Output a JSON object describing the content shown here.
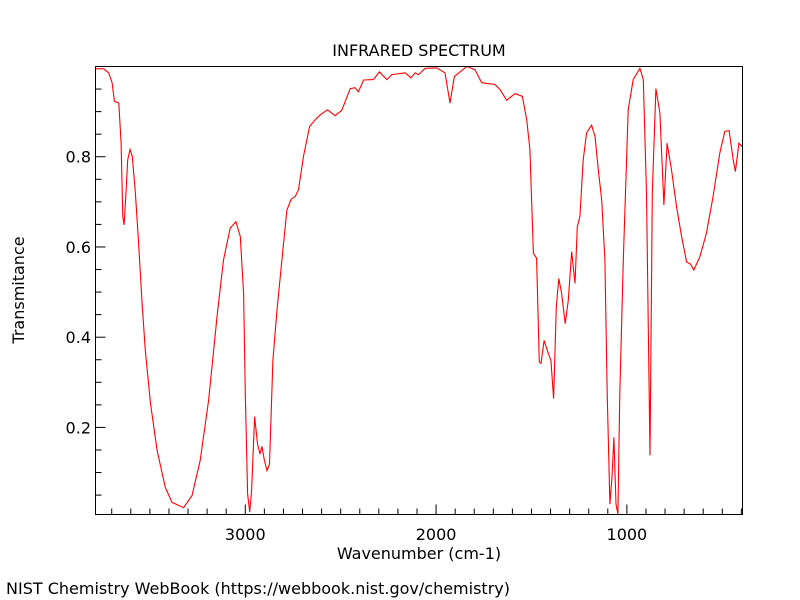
{
  "chart_data": {
    "type": "line",
    "title": "INFRARED SPECTRUM",
    "xlabel": "Wavenumber (cm-1)",
    "ylabel": "Transmitance",
    "xlim": [
      3785,
      394
    ],
    "ylim": [
      0.007,
      1.0
    ],
    "x_reversed": true,
    "grid": false,
    "x_ticks": [
      3000,
      2000,
      1000
    ],
    "x_tick_labels": [
      "3000",
      "2000",
      "1000"
    ],
    "y_ticks": [
      0.2,
      0.4,
      0.6,
      0.8
    ],
    "y_tick_labels": [
      "0.2",
      "0.4",
      "0.6",
      "0.8"
    ],
    "line_color": "#ff0000",
    "series": [
      {
        "x": [
          3785,
          3742,
          3716,
          3698,
          3686,
          3663,
          3651,
          3642,
          3635,
          3627,
          3616,
          3604,
          3592,
          3576,
          3559,
          3541,
          3524,
          3497,
          3462,
          3419,
          3384,
          3323,
          3279,
          3236,
          3192,
          3148,
          3114,
          3079,
          3049,
          3026,
          3009,
          3000,
          2988,
          2977,
          2967,
          2951,
          2936,
          2923,
          2913,
          2900,
          2886,
          2873,
          2855,
          2834,
          2808,
          2782,
          2759,
          2738,
          2721,
          2695,
          2663,
          2633,
          2607,
          2569,
          2529,
          2494,
          2450,
          2424,
          2407,
          2380,
          2328,
          2297,
          2258,
          2232,
          2162,
          2132,
          2110,
          2092,
          2057,
          1996,
          1953,
          1927,
          1904,
          1839,
          1796,
          1761,
          1691,
          1665,
          1630,
          1586,
          1548,
          1525,
          1508,
          1490,
          1473,
          1459,
          1450,
          1434,
          1412,
          1398,
          1384,
          1370,
          1357,
          1342,
          1323,
          1307,
          1289,
          1272,
          1260,
          1246,
          1229,
          1211,
          1185,
          1167,
          1150,
          1132,
          1115,
          1103,
          1089,
          1078,
          1068,
          1057,
          1047,
          1037,
          1019,
          993,
          967,
          932,
          914,
          897,
          879,
          867,
          848,
          827,
          806,
          789,
          766,
          740,
          713,
          687,
          666,
          649,
          618,
          583,
          548,
          513,
          487,
          464,
          443,
          431,
          413,
          394
        ],
        "y": [
          0.995,
          0.995,
          0.986,
          0.964,
          0.923,
          0.919,
          0.83,
          0.667,
          0.649,
          0.704,
          0.793,
          0.816,
          0.801,
          0.719,
          0.608,
          0.475,
          0.371,
          0.253,
          0.149,
          0.067,
          0.034,
          0.022,
          0.049,
          0.127,
          0.26,
          0.445,
          0.571,
          0.642,
          0.656,
          0.623,
          0.497,
          0.275,
          0.053,
          0.012,
          0.06,
          0.224,
          0.164,
          0.141,
          0.158,
          0.127,
          0.104,
          0.119,
          0.349,
          0.46,
          0.571,
          0.682,
          0.706,
          0.712,
          0.727,
          0.801,
          0.867,
          0.882,
          0.893,
          0.904,
          0.891,
          0.903,
          0.951,
          0.953,
          0.944,
          0.97,
          0.971,
          0.988,
          0.971,
          0.982,
          0.986,
          0.975,
          0.986,
          0.982,
          0.996,
          0.997,
          0.986,
          0.919,
          0.978,
          1.0,
          0.993,
          0.964,
          0.96,
          0.949,
          0.925,
          0.94,
          0.934,
          0.882,
          0.816,
          0.586,
          0.575,
          0.345,
          0.342,
          0.393,
          0.364,
          0.349,
          0.264,
          0.467,
          0.53,
          0.497,
          0.43,
          0.482,
          0.59,
          0.519,
          0.645,
          0.667,
          0.793,
          0.853,
          0.87,
          0.845,
          0.771,
          0.704,
          0.571,
          0.275,
          0.03,
          0.09,
          0.178,
          0.03,
          0.008,
          0.275,
          0.571,
          0.904,
          0.971,
          0.996,
          0.971,
          0.719,
          0.138,
          0.719,
          0.951,
          0.897,
          0.693,
          0.83,
          0.771,
          0.69,
          0.623,
          0.567,
          0.562,
          0.549,
          0.578,
          0.63,
          0.712,
          0.808,
          0.856,
          0.858,
          0.793,
          0.767,
          0.83,
          0.822
        ]
      }
    ]
  },
  "footer": "NIST Chemistry WebBook (https://webbook.nist.gov/chemistry)"
}
